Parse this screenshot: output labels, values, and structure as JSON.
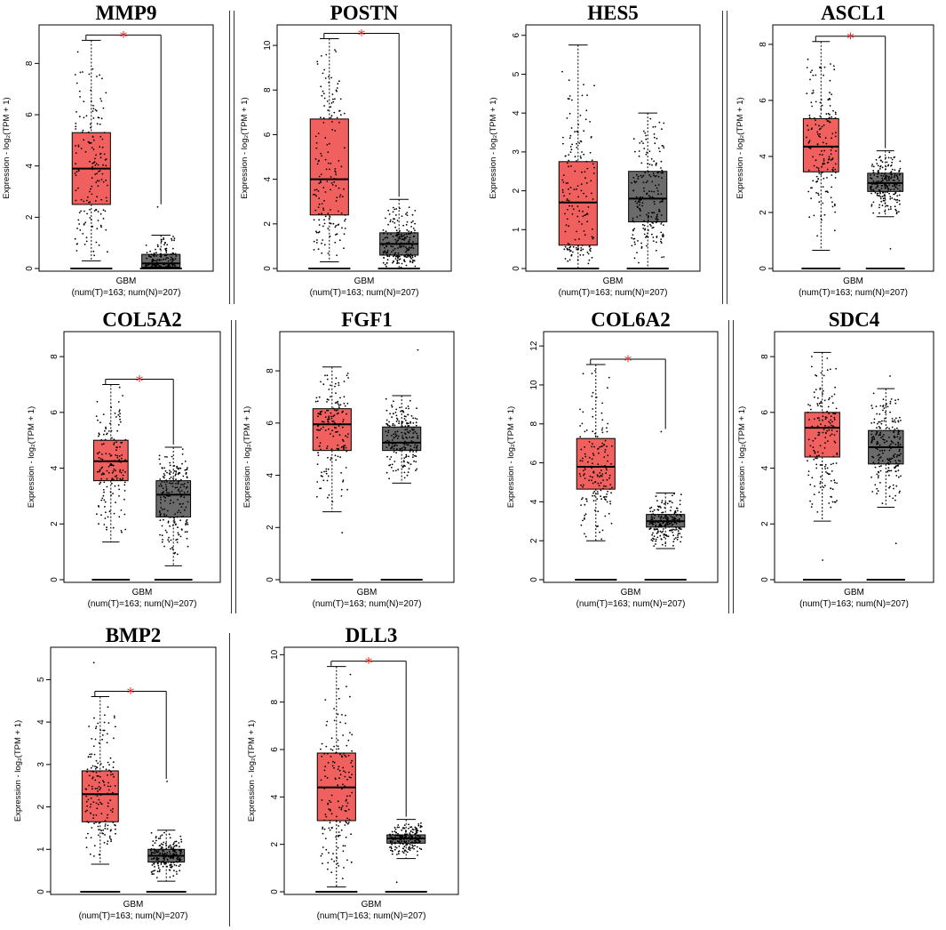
{
  "common": {
    "ylabel": "Expression - log₂(TPM + 1)",
    "xlabel": "GBM",
    "sublabel": "(num(T)=163; num(N)=207)",
    "sig_marker": "*",
    "colors": {
      "tumor": "#f0605f",
      "normal": "#6b6b6b",
      "sig": "#e8201c"
    }
  },
  "chart_data": [
    {
      "type": "box",
      "title": "MMP9",
      "significant": true,
      "ylim": [
        0,
        9.4
      ],
      "yticks": [
        0,
        2,
        4,
        6,
        8
      ],
      "tumor": {
        "whisker_low": 0.3,
        "q1": 2.5,
        "median": 3.9,
        "q3": 5.3,
        "whisker_high": 8.9
      },
      "normal": {
        "whisker_low": 0.0,
        "q1": 0.05,
        "median": 0.2,
        "q3": 0.55,
        "whisker_high": 1.3,
        "max": 2.4
      }
    },
    {
      "type": "box",
      "title": "POSTN",
      "significant": true,
      "ylim": [
        0,
        10.8
      ],
      "yticks": [
        0,
        2,
        4,
        6,
        8,
        10
      ],
      "tumor": {
        "whisker_low": 0.3,
        "q1": 2.4,
        "median": 4.0,
        "q3": 6.7,
        "whisker_high": 10.3
      },
      "normal": {
        "whisker_low": 0.0,
        "q1": 0.6,
        "median": 1.1,
        "q3": 1.6,
        "whisker_high": 3.1
      }
    },
    {
      "type": "box",
      "title": "HES5",
      "significant": false,
      "ylim": [
        0,
        6.2
      ],
      "yticks": [
        0,
        1,
        2,
        3,
        4,
        5,
        6
      ],
      "tumor": {
        "whisker_low": 0.0,
        "q1": 0.6,
        "median": 1.7,
        "q3": 2.75,
        "whisker_high": 5.75
      },
      "normal": {
        "whisker_low": 0.0,
        "q1": 1.2,
        "median": 1.8,
        "q3": 2.5,
        "whisker_high": 4.0
      }
    },
    {
      "type": "box",
      "title": "ASCL1",
      "significant": true,
      "ylim": [
        0,
        8.6
      ],
      "yticks": [
        0,
        2,
        4,
        6,
        8
      ],
      "tumor": {
        "whisker_low": 0.65,
        "q1": 3.45,
        "median": 4.35,
        "q3": 5.35,
        "whisker_high": 8.1
      },
      "normal": {
        "whisker_low": 1.85,
        "q1": 2.75,
        "median": 3.05,
        "q3": 3.4,
        "whisker_high": 4.2,
        "min": 0.7
      }
    },
    {
      "type": "box",
      "title": "COL5A2",
      "significant": true,
      "ylim": [
        0,
        8.8
      ],
      "yticks": [
        0,
        2,
        4,
        6,
        8
      ],
      "tumor": {
        "whisker_low": 1.35,
        "q1": 3.55,
        "median": 4.25,
        "q3": 5.0,
        "whisker_high": 7.0
      },
      "normal": {
        "whisker_low": 0.5,
        "q1": 2.25,
        "median": 3.05,
        "q3": 3.55,
        "whisker_high": 4.75
      }
    },
    {
      "type": "box",
      "title": "FGF1",
      "significant": false,
      "ylim": [
        0,
        9.4
      ],
      "yticks": [
        0,
        2,
        4,
        6,
        8
      ],
      "tumor": {
        "whisker_low": 2.6,
        "q1": 4.95,
        "median": 5.95,
        "q3": 6.55,
        "whisker_high": 8.15,
        "min": 1.8
      },
      "normal": {
        "whisker_low": 3.7,
        "q1": 4.95,
        "median": 5.25,
        "q3": 5.85,
        "whisker_high": 7.05,
        "max": 8.8
      }
    },
    {
      "type": "box",
      "title": "COL6A2",
      "significant": true,
      "ylim": [
        0,
        12.6
      ],
      "yticks": [
        0,
        2,
        4,
        6,
        8,
        10,
        12
      ],
      "tumor": {
        "whisker_low": 2.0,
        "q1": 4.65,
        "median": 5.8,
        "q3": 7.25,
        "whisker_high": 11.05
      },
      "normal": {
        "whisker_low": 1.6,
        "q1": 2.7,
        "median": 3.0,
        "q3": 3.35,
        "whisker_high": 4.45,
        "max": 7.6
      }
    },
    {
      "type": "box",
      "title": "SDC4",
      "significant": false,
      "ylim": [
        0,
        8.8
      ],
      "yticks": [
        0,
        2,
        4,
        6,
        8
      ],
      "tumor": {
        "whisker_low": 2.1,
        "q1": 4.4,
        "median": 5.45,
        "q3": 6.0,
        "whisker_high": 8.15,
        "min": 0.7
      },
      "normal": {
        "whisker_low": 2.6,
        "q1": 4.15,
        "median": 4.75,
        "q3": 5.35,
        "whisker_high": 6.85,
        "min": 1.3,
        "max": 7.3
      }
    },
    {
      "type": "box",
      "title": "BMP2",
      "significant": true,
      "ylim": [
        0,
        5.7
      ],
      "yticks": [
        0,
        1,
        2,
        3,
        4,
        5
      ],
      "tumor": {
        "whisker_low": 0.65,
        "q1": 1.65,
        "median": 2.3,
        "q3": 2.85,
        "whisker_high": 4.6,
        "max": 5.4
      },
      "normal": {
        "whisker_low": 0.25,
        "q1": 0.7,
        "median": 0.85,
        "q3": 1.0,
        "whisker_high": 1.45,
        "max": 2.6
      }
    },
    {
      "type": "box",
      "title": "DLL3",
      "significant": true,
      "ylim": [
        0,
        10.2
      ],
      "yticks": [
        0,
        2,
        4,
        6,
        8,
        10
      ],
      "tumor": {
        "whisker_low": 0.2,
        "q1": 3.0,
        "median": 4.4,
        "q3": 5.85,
        "whisker_high": 9.5
      },
      "normal": {
        "whisker_low": 1.4,
        "q1": 2.05,
        "median": 2.25,
        "q3": 2.4,
        "whisker_high": 3.05,
        "min": 0.4
      }
    }
  ]
}
